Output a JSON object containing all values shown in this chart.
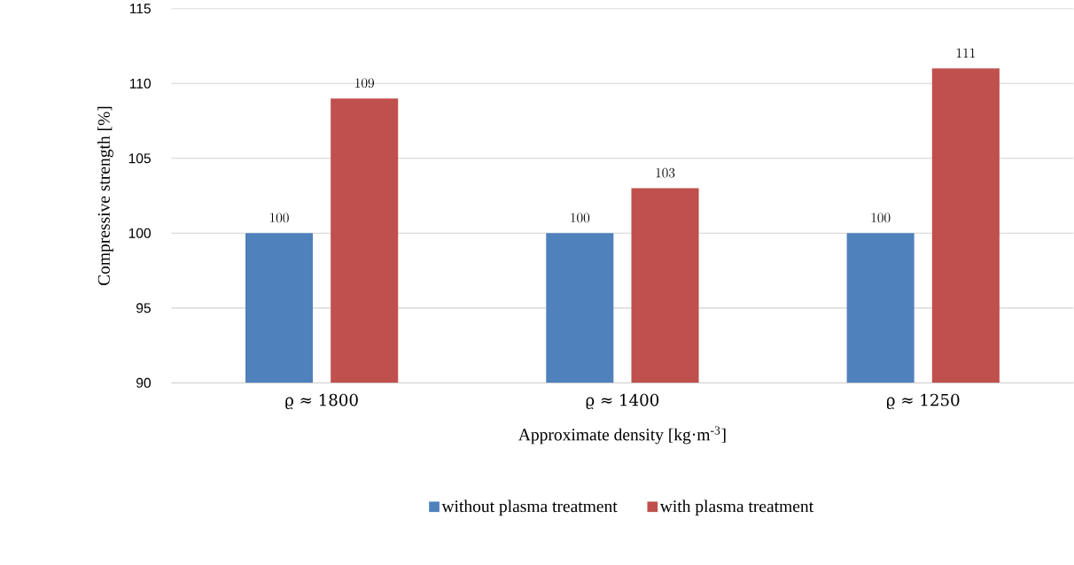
{
  "chart_data": {
    "type": "bar",
    "categories": [
      "ϱ ≈ 1800",
      "ϱ ≈ 1400",
      "ϱ ≈ 1250"
    ],
    "series": [
      {
        "name": "without plasma treatment",
        "color": "#4f81bd",
        "values": [
          100,
          100,
          100
        ]
      },
      {
        "name": "with plasma treatment",
        "color": "#c0504d",
        "values": [
          109,
          103,
          111
        ]
      }
    ],
    "xlabel": "Approximate density [kg·m$^{-3}$]",
    "ylabel": "Compressive strength [%]",
    "ylim": [
      90,
      115
    ],
    "yticks": [
      90,
      95,
      100,
      105,
      110,
      115
    ],
    "grid": "y",
    "legend": "bottom",
    "data_labels": true
  }
}
